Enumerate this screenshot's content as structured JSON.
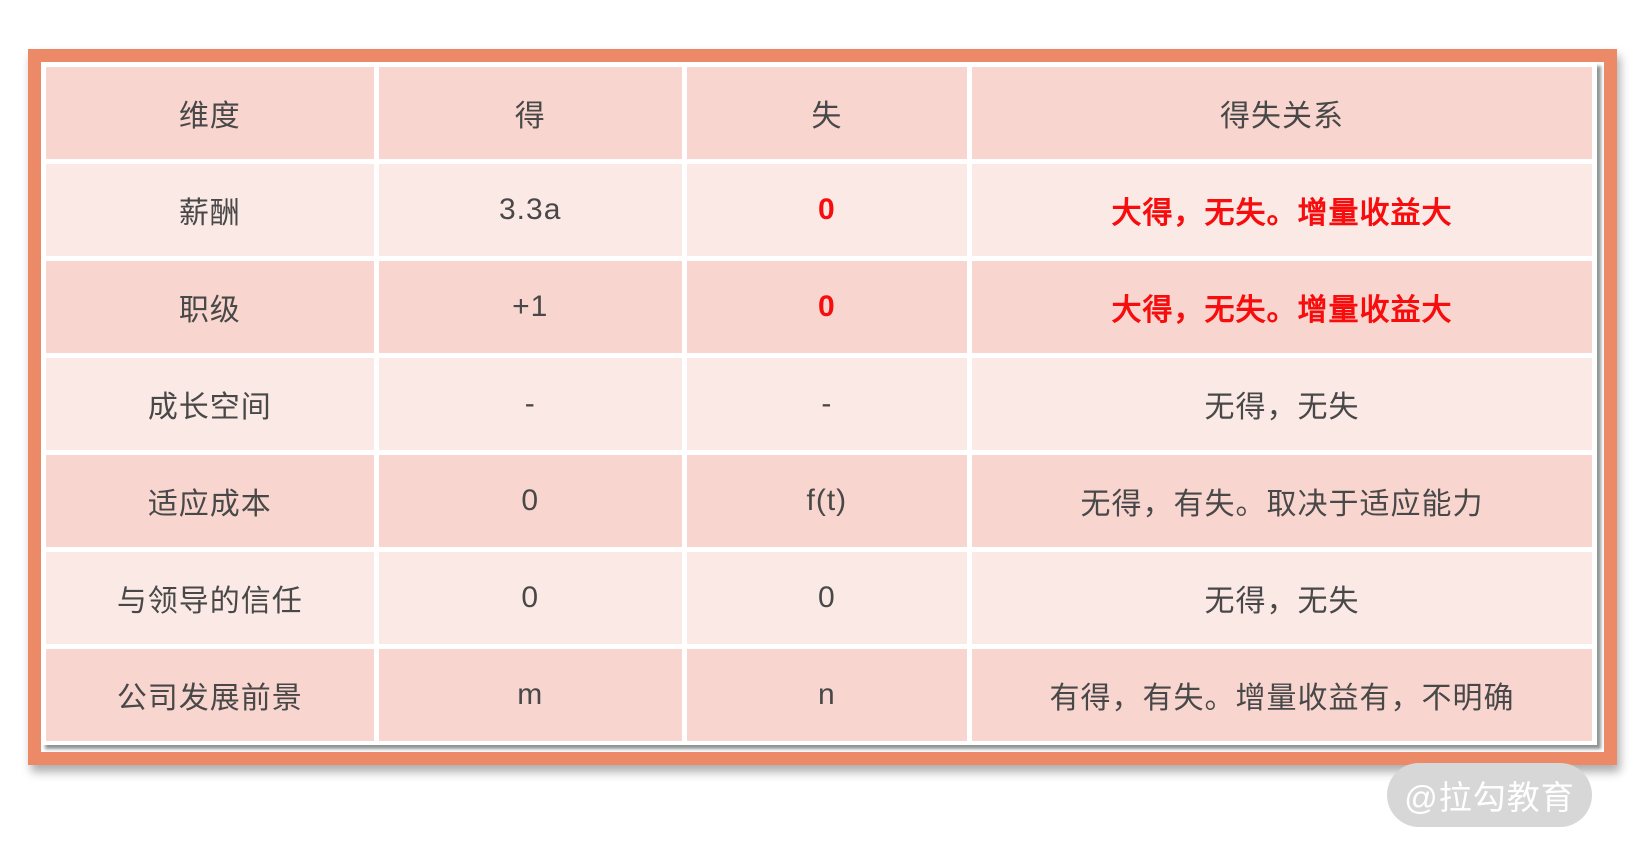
{
  "table": {
    "columns": {
      "dimension": "维度",
      "gain": "得",
      "loss": "失",
      "relation": "得失关系"
    },
    "rows": [
      {
        "dimension": "薪酬",
        "gain": "3.3a",
        "loss": "0",
        "relation": "大得，无失。增量收益大",
        "highlight": true
      },
      {
        "dimension": "职级",
        "gain": "+1",
        "loss": "0",
        "relation": "大得，无失。增量收益大",
        "highlight": true
      },
      {
        "dimension": "成长空间",
        "gain": "-",
        "loss": "-",
        "relation": "无得，无失",
        "highlight": false
      },
      {
        "dimension": "适应成本",
        "gain": "0",
        "loss": "f(t)",
        "relation": "无得，有失。取决于适应能力",
        "highlight": false
      },
      {
        "dimension": "与领导的信任",
        "gain": "0",
        "loss": "0",
        "relation": "无得，无失",
        "highlight": false
      },
      {
        "dimension": "公司发展前景",
        "gain": "m",
        "loss": "n",
        "relation": "有得，有失。增量收益有，不明确",
        "highlight": false
      }
    ]
  },
  "watermark": {
    "label": "@拉勾教育"
  },
  "colors": {
    "frame_border": "#EC8A68",
    "row_dark": "#F8D6CF",
    "row_light": "#FBE9E5",
    "text_dark": "#484848",
    "text_highlight": "#F70D0D",
    "watermark_bg": "#D7D7D7",
    "watermark_text": "#FFFFFF"
  }
}
